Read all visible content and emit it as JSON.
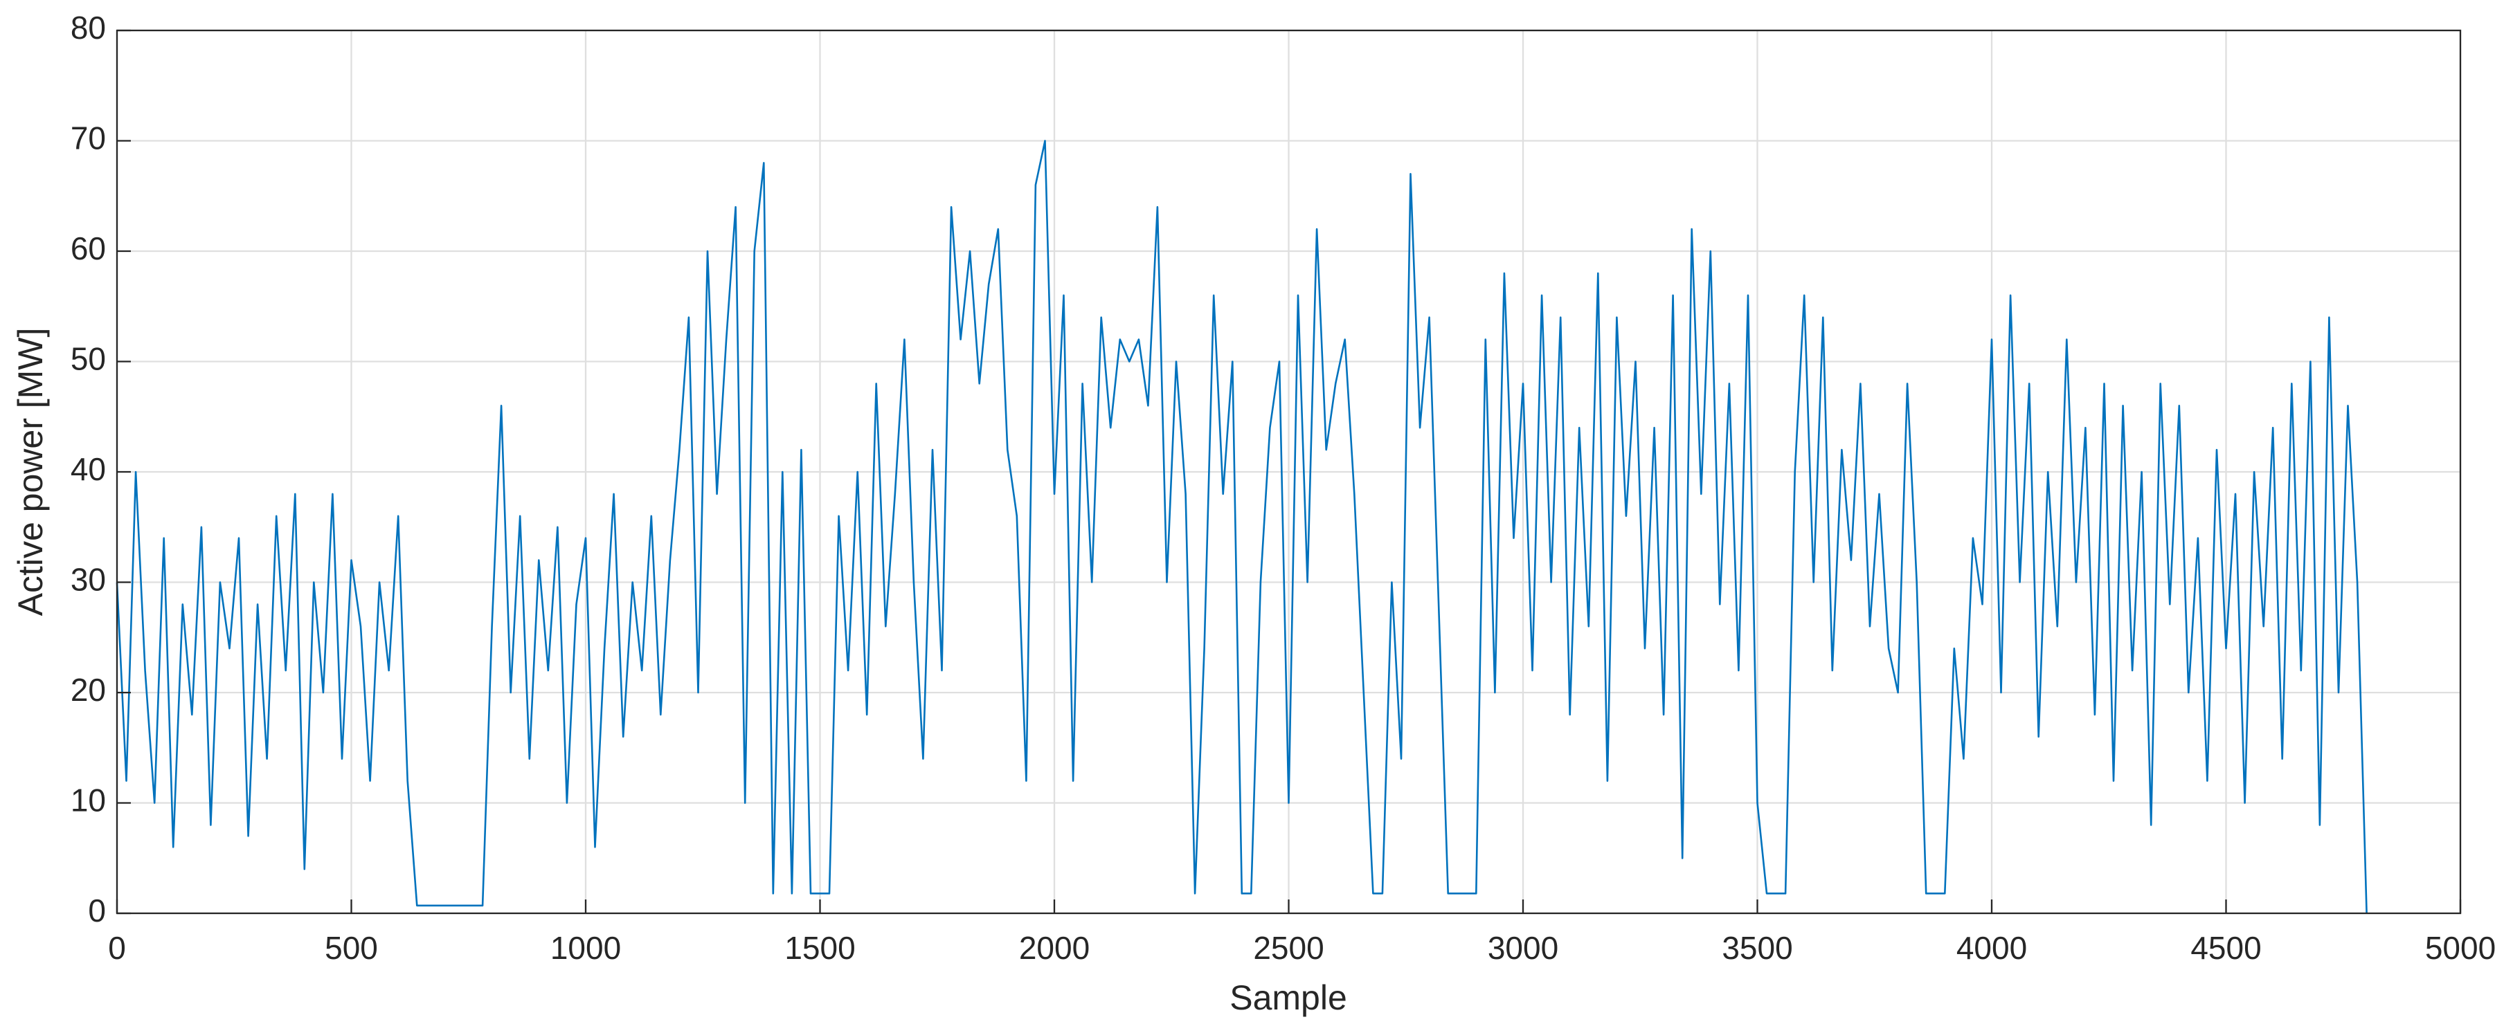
{
  "chart_data": {
    "type": "line",
    "xlabel": "Sample",
    "ylabel": "Active power [MW]",
    "color": "#0072bd",
    "grid": true,
    "xlim": [
      0,
      5000
    ],
    "xticks": [
      0,
      500,
      1000,
      1500,
      2000,
      2500,
      3000,
      3500,
      4000,
      4500,
      5000
    ],
    "ylim": [
      0,
      80
    ],
    "yticks": [
      0,
      10,
      20,
      30,
      40,
      50,
      60,
      70,
      80
    ],
    "x": [
      0,
      20,
      40,
      60,
      80,
      100,
      120,
      140,
      160,
      180,
      200,
      220,
      240,
      260,
      280,
      300,
      320,
      340,
      360,
      380,
      400,
      420,
      440,
      460,
      480,
      500,
      520,
      540,
      560,
      580,
      600,
      620,
      640,
      660,
      680,
      700,
      720,
      740,
      760,
      780,
      800,
      820,
      840,
      860,
      880,
      900,
      920,
      940,
      960,
      980,
      1000,
      1020,
      1040,
      1060,
      1080,
      1100,
      1120,
      1140,
      1160,
      1180,
      1200,
      1220,
      1240,
      1260,
      1280,
      1300,
      1320,
      1340,
      1360,
      1380,
      1400,
      1420,
      1440,
      1460,
      1480,
      1500,
      1520,
      1540,
      1560,
      1580,
      1600,
      1620,
      1640,
      1660,
      1680,
      1700,
      1720,
      1740,
      1760,
      1780,
      1800,
      1820,
      1840,
      1860,
      1880,
      1900,
      1920,
      1940,
      1960,
      1980,
      2000,
      2020,
      2040,
      2060,
      2080,
      2100,
      2120,
      2140,
      2160,
      2180,
      2200,
      2220,
      2240,
      2260,
      2280,
      2300,
      2320,
      2340,
      2360,
      2380,
      2400,
      2420,
      2440,
      2460,
      2480,
      2500,
      2520,
      2540,
      2560,
      2580,
      2600,
      2620,
      2640,
      2660,
      2680,
      2700,
      2720,
      2740,
      2760,
      2780,
      2800,
      2820,
      2840,
      2860,
      2880,
      2900,
      2920,
      2940,
      2960,
      2980,
      3000,
      3020,
      3040,
      3060,
      3080,
      3100,
      3120,
      3140,
      3160,
      3180,
      3200,
      3220,
      3240,
      3260,
      3280,
      3300,
      3320,
      3340,
      3360,
      3380,
      3400,
      3420,
      3440,
      3460,
      3480,
      3500,
      3520,
      3540,
      3560,
      3580,
      3600,
      3620,
      3640,
      3660,
      3680,
      3700,
      3720,
      3740,
      3760,
      3780,
      3800,
      3820,
      3840,
      3860,
      3880,
      3900,
      3920,
      3940,
      3960,
      3980,
      4000,
      4020,
      4040,
      4060,
      4080,
      4100,
      4120,
      4140,
      4160,
      4180,
      4200,
      4220,
      4240,
      4260,
      4280,
      4300,
      4320,
      4340,
      4360,
      4380,
      4400,
      4420,
      4440,
      4460,
      4480,
      4500,
      4520,
      4540,
      4560,
      4580,
      4600,
      4620,
      4640,
      4660,
      4680,
      4700,
      4720,
      4740,
      4760,
      4780,
      4800
    ],
    "values": [
      30,
      12,
      40,
      22,
      10,
      34,
      6,
      28,
      18,
      35,
      8,
      30,
      24,
      34,
      7,
      28,
      14,
      36,
      22,
      38,
      4,
      30,
      20,
      38,
      14,
      32,
      26,
      12,
      30,
      22,
      36,
      12,
      0.7,
      0.7,
      0.7,
      0.7,
      0.7,
      0.7,
      0.7,
      0.7,
      26,
      46,
      20,
      36,
      14,
      32,
      22,
      35,
      10,
      28,
      34,
      6,
      24,
      38,
      16,
      30,
      22,
      36,
      18,
      32,
      42,
      54,
      20,
      60,
      38,
      52,
      64,
      10,
      60,
      68,
      1.8,
      40,
      1.8,
      42,
      1.8,
      1.8,
      1.8,
      36,
      22,
      40,
      18,
      48,
      26,
      38,
      52,
      30,
      14,
      42,
      22,
      64,
      52,
      60,
      48,
      57,
      62,
      42,
      36,
      12,
      66,
      70,
      38,
      56,
      12,
      48,
      30,
      54,
      44,
      52,
      50,
      52,
      46,
      64,
      30,
      50,
      38,
      1.8,
      24,
      56,
      38,
      50,
      1.8,
      1.8,
      30,
      44,
      50,
      10,
      56,
      30,
      62,
      42,
      48,
      52,
      38,
      20,
      1.8,
      1.8,
      30,
      14,
      67,
      44,
      54,
      28,
      1.8,
      1.8,
      1.8,
      1.8,
      52,
      20,
      58,
      34,
      48,
      22,
      56,
      30,
      54,
      18,
      44,
      26,
      58,
      12,
      54,
      36,
      50,
      24,
      44,
      18,
      56,
      5,
      62,
      38,
      60,
      28,
      48,
      22,
      56,
      10,
      1.8,
      1.8,
      1.8,
      40,
      56,
      30,
      54,
      22,
      42,
      32,
      48,
      26,
      38,
      24,
      20,
      48,
      30,
      1.8,
      1.8,
      1.8,
      24,
      14,
      34,
      28,
      52,
      20,
      56,
      30,
      48,
      16,
      40,
      26,
      52,
      30,
      44,
      18,
      48,
      12,
      46,
      22,
      40,
      8,
      48,
      28,
      46,
      20,
      34,
      12,
      42,
      24,
      38,
      10,
      40,
      26,
      44,
      14,
      48,
      22,
      50,
      8,
      54,
      20,
      46,
      30,
      0
    ]
  }
}
